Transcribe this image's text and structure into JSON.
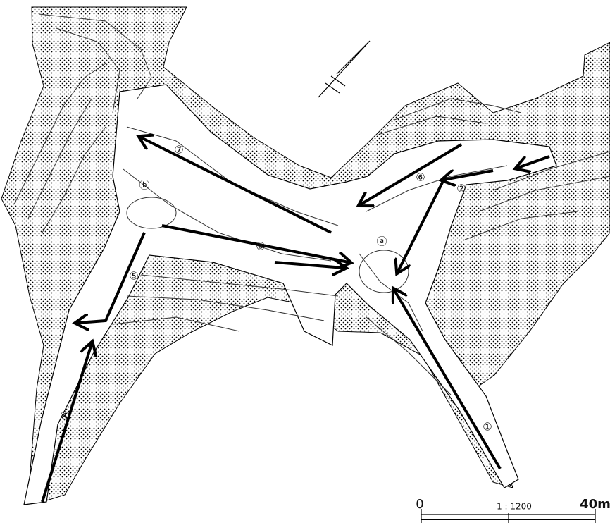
{
  "routes": [
    "①",
    "②",
    "③",
    "④",
    "⑤",
    "⑥",
    "⑦"
  ],
  "areas": [
    "ⓐ",
    "ⓑ"
  ],
  "scale": {
    "start": "0",
    "ratio": "1 : 1200",
    "end": "40m"
  }
}
